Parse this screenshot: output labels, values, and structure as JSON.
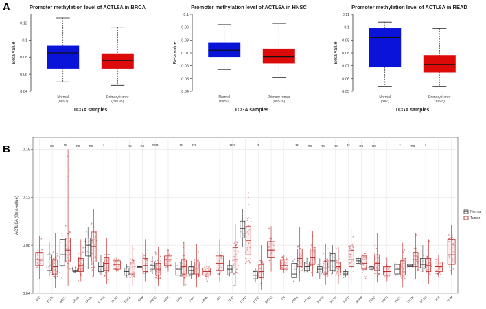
{
  "panel_labels": {
    "a": "A",
    "b": "B"
  },
  "chart_data": [
    {
      "type": "box",
      "title": "Promoter methylation level of ACTL6A in BRCA",
      "xlabel": "TCGA samples",
      "ylabel": "Beta value",
      "ylim": [
        0.04,
        0.13
      ],
      "yticks": [
        0.04,
        0.06,
        0.08,
        0.1,
        0.12
      ],
      "groups": [
        {
          "name": "Normal",
          "n": "(n=97)",
          "color": "#0a14d8",
          "min": 0.051,
          "q1": 0.067,
          "median": 0.085,
          "q3": 0.093,
          "max": 0.126
        },
        {
          "name": "Primary tumor",
          "n": "(n=793)",
          "color": "#dd0a0a",
          "min": 0.047,
          "q1": 0.067,
          "median": 0.076,
          "q3": 0.084,
          "max": 0.115
        }
      ]
    },
    {
      "type": "box",
      "title": "Promoter methylation level of ACTL6A in HNSC",
      "xlabel": "TCGA samples",
      "ylabel": "Beta value",
      "ylim": [
        0.04,
        0.1
      ],
      "yticks": [
        0.04,
        0.05,
        0.06,
        0.07,
        0.08,
        0.09,
        0.1
      ],
      "groups": [
        {
          "name": "Normal",
          "n": "(n=50)",
          "color": "#0a14d8",
          "min": 0.057,
          "q1": 0.067,
          "median": 0.072,
          "q3": 0.078,
          "max": 0.092
        },
        {
          "name": "Primary tumor",
          "n": "(n=528)",
          "color": "#dd0a0a",
          "min": 0.051,
          "q1": 0.062,
          "median": 0.067,
          "q3": 0.073,
          "max": 0.093
        }
      ]
    },
    {
      "type": "box",
      "title": "Promoter methylation level of ACTL6A in READ",
      "xlabel": "TCGA samples",
      "ylabel": "Beta value",
      "ylim": [
        0.05,
        0.11
      ],
      "yticks": [
        0.05,
        0.06,
        0.07,
        0.08,
        0.09,
        0.1,
        0.11
      ],
      "groups": [
        {
          "name": "Normal",
          "n": "(n=7)",
          "color": "#0a14d8",
          "min": 0.054,
          "q1": 0.069,
          "median": 0.092,
          "q3": 0.099,
          "max": 0.104
        },
        {
          "name": "Primary tumor",
          "n": "(n=98)",
          "color": "#dd0a0a",
          "min": 0.054,
          "q1": 0.065,
          "median": 0.071,
          "q3": 0.078,
          "max": 0.099
        }
      ]
    },
    {
      "type": "box",
      "ylabel": "ACTL6A (Beta-value)",
      "ylim": [
        0.04,
        0.17
      ],
      "yticks": [
        0.04,
        0.08,
        0.12,
        0.16
      ],
      "legend": {
        "title": "",
        "entries": [
          {
            "name": "Normal",
            "color": "#333333"
          },
          {
            "name": "Tumor",
            "color": "#b71c1c"
          }
        ],
        "position": "right"
      },
      "cancers": [
        {
          "name": "ACC",
          "sig": "",
          "tumor": [
            0.052,
            0.063,
            0.068,
            0.074,
            0.088
          ]
        },
        {
          "name": "BLCA",
          "sig": "ns",
          "normal": [
            0.054,
            0.059,
            0.066,
            0.072,
            0.083
          ],
          "tumor": [
            0.044,
            0.056,
            0.062,
            0.068,
            0.09
          ]
        },
        {
          "name": "BRCA",
          "sig": "**",
          "normal": [
            0.045,
            0.063,
            0.072,
            0.085,
            0.12
          ],
          "tumor": [
            0.046,
            0.066,
            0.076,
            0.086,
            0.16
          ]
        },
        {
          "name": "CESC",
          "sig": "ns",
          "normal": [
            0.057,
            0.058,
            0.059,
            0.061,
            0.062
          ],
          "tumor": [
            0.05,
            0.058,
            0.063,
            0.069,
            0.085
          ]
        },
        {
          "name": "CHOL",
          "sig": "ns",
          "normal": [
            0.06,
            0.071,
            0.08,
            0.086,
            0.095
          ],
          "tumor": [
            0.054,
            0.066,
            0.079,
            0.091,
            0.11
          ]
        },
        {
          "name": "COAD",
          "sig": "*",
          "normal": [
            0.055,
            0.058,
            0.062,
            0.066,
            0.072
          ],
          "tumor": [
            0.048,
            0.059,
            0.065,
            0.07,
            0.086
          ]
        },
        {
          "name": "DLBC",
          "sig": "",
          "tumor": [
            0.058,
            0.06,
            0.064,
            0.067,
            0.07
          ]
        },
        {
          "name": "ESCA",
          "sig": "ns",
          "normal": [
            0.053,
            0.055,
            0.058,
            0.061,
            0.064
          ],
          "tumor": [
            0.046,
            0.056,
            0.061,
            0.066,
            0.08
          ]
        },
        {
          "name": "GBM",
          "sig": "ns",
          "normal": [
            0.062,
            0.062,
            0.062,
            0.062,
            0.062
          ],
          "tumor": [
            0.05,
            0.058,
            0.063,
            0.069,
            0.085
          ]
        },
        {
          "name": "HNSC",
          "sig": "****",
          "normal": [
            0.056,
            0.06,
            0.063,
            0.066,
            0.071
          ],
          "tumor": [
            0.046,
            0.055,
            0.06,
            0.065,
            0.079
          ]
        },
        {
          "name": "KICH",
          "sig": "",
          "tumor": [
            0.058,
            0.063,
            0.068,
            0.071,
            0.077
          ]
        },
        {
          "name": "KIRC",
          "sig": "**",
          "normal": [
            0.047,
            0.055,
            0.06,
            0.066,
            0.08
          ],
          "tumor": [
            0.046,
            0.056,
            0.062,
            0.068,
            0.083
          ]
        },
        {
          "name": "KIRP",
          "sig": "***",
          "normal": [
            0.052,
            0.056,
            0.059,
            0.062,
            0.067
          ],
          "tumor": [
            0.045,
            0.056,
            0.061,
            0.066,
            0.081
          ]
        },
        {
          "name": "LAML",
          "sig": "",
          "tumor": [
            0.049,
            0.055,
            0.058,
            0.061,
            0.07
          ]
        },
        {
          "name": "LGG",
          "sig": "",
          "tumor": [
            0.05,
            0.059,
            0.065,
            0.071,
            0.085
          ]
        },
        {
          "name": "LIHC",
          "sig": "****",
          "normal": [
            0.054,
            0.057,
            0.06,
            0.063,
            0.068
          ],
          "tumor": [
            0.046,
            0.061,
            0.068,
            0.078,
            0.098
          ]
        },
        {
          "name": "LUAD",
          "sig": "",
          "normal": [
            0.079,
            0.086,
            0.094,
            0.1,
            0.11
          ],
          "tumor": [
            0.048,
            0.072,
            0.084,
            0.096,
            0.13
          ]
        },
        {
          "name": "LUSC",
          "sig": "*",
          "normal": [
            0.049,
            0.052,
            0.055,
            0.058,
            0.061
          ],
          "tumor": [
            0.043,
            0.053,
            0.058,
            0.064,
            0.08
          ]
        },
        {
          "name": "MESO",
          "sig": "",
          "tumor": [
            0.058,
            0.07,
            0.076,
            0.083,
            0.096
          ]
        },
        {
          "name": "OV",
          "sig": "",
          "tumor": [
            0.057,
            0.06,
            0.063,
            0.068,
            0.072
          ]
        },
        {
          "name": "PAAD",
          "sig": "**",
          "normal": [
            0.05,
            0.053,
            0.056,
            0.065,
            0.077
          ],
          "tumor": [
            0.05,
            0.062,
            0.069,
            0.077,
            0.095
          ]
        },
        {
          "name": "PCPG",
          "sig": "ns",
          "normal": [
            0.058,
            0.059,
            0.062,
            0.066,
            0.07
          ],
          "tumor": [
            0.054,
            0.064,
            0.07,
            0.077,
            0.092
          ]
        },
        {
          "name": "PRAD",
          "sig": "ns",
          "normal": [
            0.052,
            0.057,
            0.06,
            0.062,
            0.069
          ],
          "tumor": [
            0.047,
            0.056,
            0.061,
            0.066,
            0.081
          ]
        },
        {
          "name": "READ",
          "sig": "ns",
          "normal": [
            0.056,
            0.059,
            0.067,
            0.073,
            0.08
          ],
          "tumor": [
            0.048,
            0.057,
            0.062,
            0.066,
            0.079
          ]
        },
        {
          "name": "SARC",
          "sig": "**",
          "normal": [
            0.053,
            0.055,
            0.056,
            0.058,
            0.06
          ],
          "tumor": [
            0.048,
            0.062,
            0.068,
            0.076,
            0.094
          ]
        },
        {
          "name": "SKCM",
          "sig": "ns",
          "normal": [
            0.064,
            0.065,
            0.067,
            0.069,
            0.07
          ],
          "tumor": [
            0.05,
            0.06,
            0.065,
            0.071,
            0.086
          ]
        },
        {
          "name": "STAD",
          "sig": "ns",
          "normal": [
            0.059,
            0.06,
            0.061,
            0.062,
            0.063
          ],
          "tumor": [
            0.049,
            0.059,
            0.065,
            0.072,
            0.09
          ]
        },
        {
          "name": "TGCT",
          "sig": "",
          "tumor": [
            0.05,
            0.055,
            0.058,
            0.062,
            0.07
          ]
        },
        {
          "name": "THCA",
          "sig": "*",
          "normal": [
            0.052,
            0.056,
            0.06,
            0.064,
            0.071
          ],
          "tumor": [
            0.045,
            0.055,
            0.061,
            0.067,
            0.082
          ]
        },
        {
          "name": "THYM",
          "sig": "ns",
          "normal": [
            0.061,
            0.062,
            0.063,
            0.064,
            0.065
          ],
          "tumor": [
            0.052,
            0.062,
            0.068,
            0.074,
            0.09
          ]
        },
        {
          "name": "UCEC",
          "sig": "*",
          "normal": [
            0.058,
            0.061,
            0.064,
            0.069,
            0.08
          ],
          "tumor": [
            0.048,
            0.058,
            0.063,
            0.069,
            0.085
          ]
        },
        {
          "name": "UCS",
          "sig": "",
          "tumor": [
            0.053,
            0.058,
            0.062,
            0.066,
            0.072
          ]
        },
        {
          "name": "UVM",
          "sig": "",
          "tumor": [
            0.055,
            0.064,
            0.072,
            0.085,
            0.097
          ]
        }
      ]
    }
  ]
}
